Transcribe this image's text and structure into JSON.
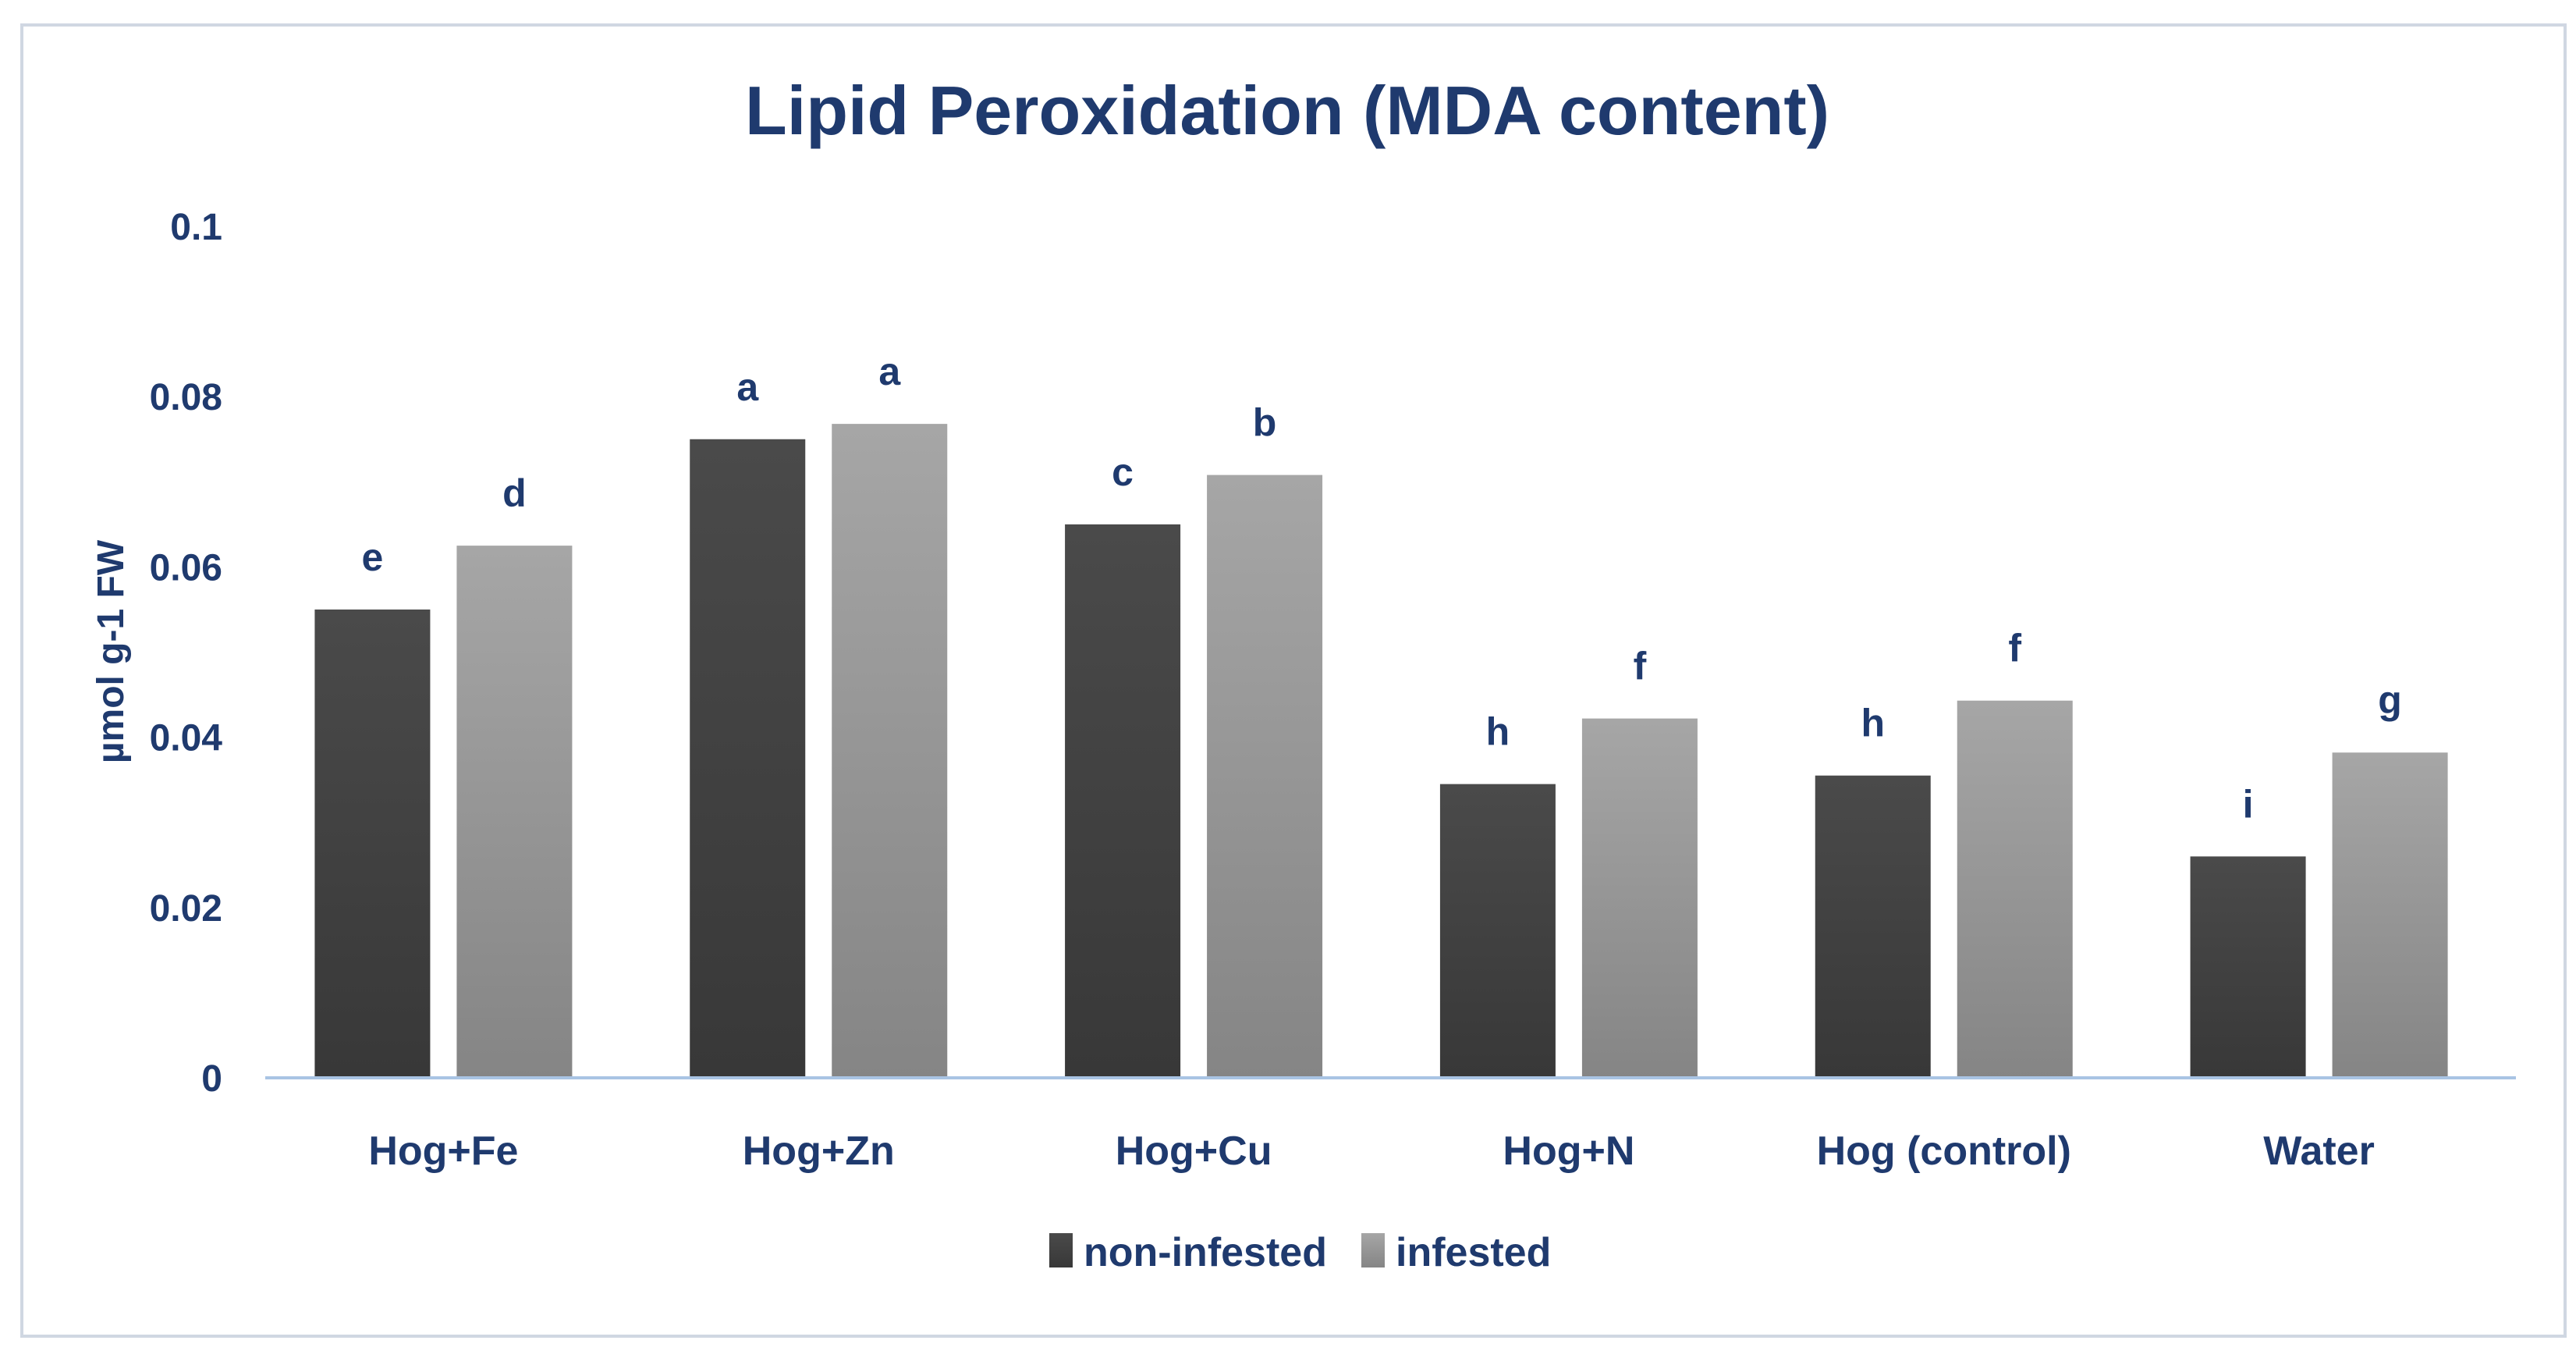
{
  "chart_data": {
    "type": "bar",
    "title": "Lipid Peroxidation (MDA content)",
    "xlabel": "",
    "ylabel": "µmol g-1 FW",
    "ylim": [
      0,
      0.1
    ],
    "yticks": [
      "0",
      "0.02",
      "0.04",
      "0.06",
      "0.08",
      "0.1"
    ],
    "ytick_values": [
      0,
      0.02,
      0.04,
      0.06,
      0.08,
      0.1
    ],
    "grid": false,
    "legend_position": "bottom",
    "categories": [
      "Hog+Fe",
      "Hog+Zn",
      "Hog+Cu",
      "Hog+N",
      "Hog (control)",
      "Water"
    ],
    "series": [
      {
        "name": "non-infested",
        "color": "#444444",
        "values": [
          0.055,
          0.075,
          0.065,
          0.0345,
          0.0355,
          0.026
        ],
        "labels": [
          "e",
          "a",
          "c",
          "h",
          "h",
          "i"
        ]
      },
      {
        "name": "infested",
        "color": "#9a9a9a",
        "values": [
          0.0625,
          0.0768,
          0.0708,
          0.0422,
          0.0443,
          0.0382
        ],
        "labels": [
          "d",
          "a",
          "b",
          "f",
          "f",
          "g"
        ]
      }
    ],
    "colors": {
      "title": "#1f3a6e",
      "axis_text": "#1f3a6e",
      "axis_line": "#a9c4e4",
      "frame": "#d0d7e2"
    }
  }
}
